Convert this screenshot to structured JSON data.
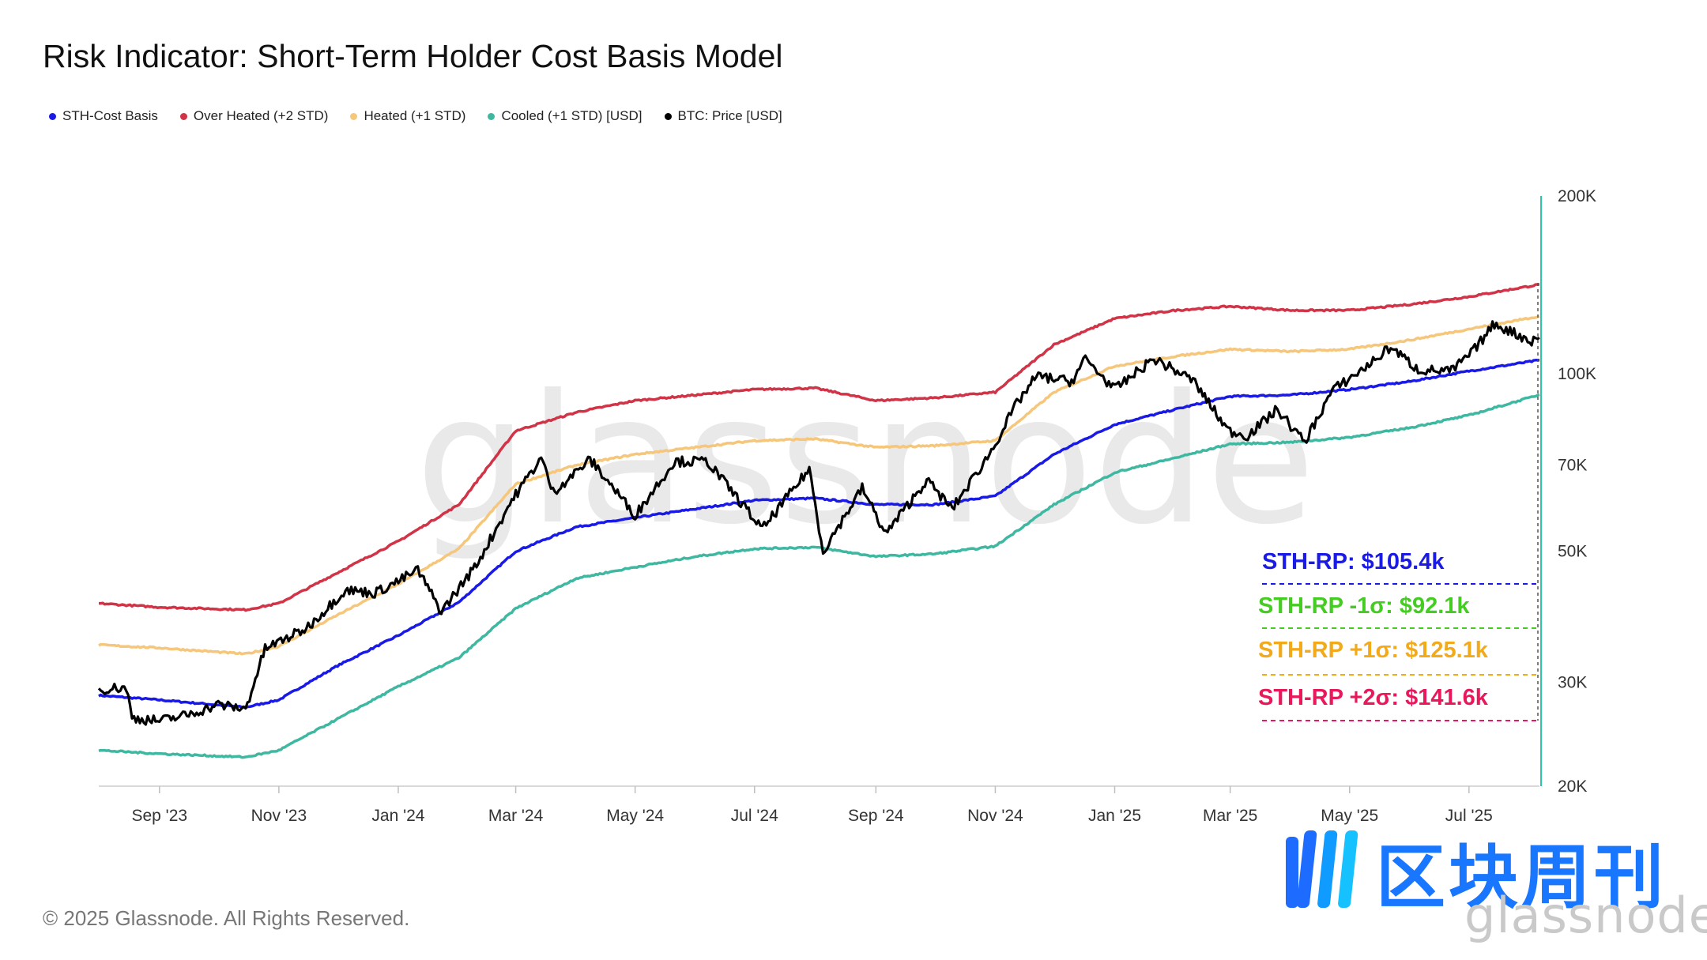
{
  "title": "Risk Indicator: Short-Term Holder Cost Basis Model",
  "legend": [
    {
      "label": "STH-Cost Basis",
      "color": "#1a1ae6"
    },
    {
      "label": "Over Heated (+2 STD)",
      "color": "#d13347"
    },
    {
      "label": "Heated (+1 STD)",
      "color": "#f6c67a"
    },
    {
      "label": "Cooled (+1 STD) [USD]",
      "color": "#3fb8a2"
    },
    {
      "label": "BTC: Price [USD]",
      "color": "#000000"
    }
  ],
  "copyright": "© 2025 Glassnode. All Rights Reserved.",
  "watermark": "glassnode",
  "logo": {
    "text": "区块周刊",
    "sub": "glassnode"
  },
  "chart_data": {
    "type": "line",
    "title": "Risk Indicator: Short-Term Holder Cost Basis Model",
    "y_scale": "log",
    "ylim": [
      20000,
      200000
    ],
    "y_ticks": [
      {
        "value": 200000,
        "label": "200K"
      },
      {
        "value": 100000,
        "label": "100K"
      },
      {
        "value": 70000,
        "label": "70K"
      },
      {
        "value": 50000,
        "label": "50K"
      },
      {
        "value": 30000,
        "label": "30K"
      },
      {
        "value": 20000,
        "label": "20K"
      }
    ],
    "x_range": [
      "2023-08-01",
      "2025-08-06"
    ],
    "x_ticks": [
      {
        "date": "2023-09-01",
        "label": "Sep '23"
      },
      {
        "date": "2023-11-01",
        "label": "Nov '23"
      },
      {
        "date": "2024-01-01",
        "label": "Jan '24"
      },
      {
        "date": "2024-03-01",
        "label": "Mar '24"
      },
      {
        "date": "2024-05-01",
        "label": "May '24"
      },
      {
        "date": "2024-07-01",
        "label": "Jul '24"
      },
      {
        "date": "2024-09-01",
        "label": "Sep '24"
      },
      {
        "date": "2024-11-01",
        "label": "Nov '24"
      },
      {
        "date": "2025-01-01",
        "label": "Jan '25"
      },
      {
        "date": "2025-03-01",
        "label": "Mar '25"
      },
      {
        "date": "2025-05-01",
        "label": "May '25"
      },
      {
        "date": "2025-07-01",
        "label": "Jul '25"
      }
    ],
    "series": [
      {
        "name": "STH-Cost Basis",
        "color": "#1a1ae6",
        "points": [
          [
            "2023-08-01",
            28500
          ],
          [
            "2023-09-01",
            28000
          ],
          [
            "2023-10-15",
            27200
          ],
          [
            "2023-11-01",
            28000
          ],
          [
            "2023-12-01",
            32000
          ],
          [
            "2024-01-01",
            36000
          ],
          [
            "2024-02-01",
            41000
          ],
          [
            "2024-03-01",
            50000
          ],
          [
            "2024-04-01",
            55000
          ],
          [
            "2024-05-01",
            57000
          ],
          [
            "2024-06-01",
            59000
          ],
          [
            "2024-07-01",
            61000
          ],
          [
            "2024-08-01",
            61500
          ],
          [
            "2024-09-01",
            60000
          ],
          [
            "2024-10-01",
            60000
          ],
          [
            "2024-11-01",
            62000
          ],
          [
            "2024-12-01",
            73000
          ],
          [
            "2025-01-01",
            82000
          ],
          [
            "2025-02-01",
            87000
          ],
          [
            "2025-03-01",
            91500
          ],
          [
            "2025-04-01",
            92000
          ],
          [
            "2025-05-01",
            94000
          ],
          [
            "2025-06-01",
            97000
          ],
          [
            "2025-07-01",
            101000
          ],
          [
            "2025-08-06",
            105400
          ]
        ]
      },
      {
        "name": "Over Heated (+2 STD)",
        "color": "#d13347",
        "points": [
          [
            "2023-08-01",
            40800
          ],
          [
            "2023-09-01",
            40200
          ],
          [
            "2023-10-15",
            39800
          ],
          [
            "2023-11-01",
            40800
          ],
          [
            "2023-12-01",
            46000
          ],
          [
            "2024-01-01",
            52000
          ],
          [
            "2024-02-01",
            60000
          ],
          [
            "2024-03-01",
            80000
          ],
          [
            "2024-04-01",
            86000
          ],
          [
            "2024-05-01",
            90000
          ],
          [
            "2024-06-01",
            92000
          ],
          [
            "2024-07-01",
            94000
          ],
          [
            "2024-08-01",
            94500
          ],
          [
            "2024-09-01",
            90000
          ],
          [
            "2024-10-01",
            91000
          ],
          [
            "2024-11-01",
            93000
          ],
          [
            "2024-12-01",
            112000
          ],
          [
            "2025-01-01",
            124000
          ],
          [
            "2025-02-01",
            128000
          ],
          [
            "2025-03-01",
            130000
          ],
          [
            "2025-04-01",
            128000
          ],
          [
            "2025-05-01",
            128000
          ],
          [
            "2025-06-01",
            131000
          ],
          [
            "2025-07-01",
            135000
          ],
          [
            "2025-08-06",
            141600
          ]
        ]
      },
      {
        "name": "Heated (+1 STD)",
        "color": "#f6c67a",
        "points": [
          [
            "2023-08-01",
            34700
          ],
          [
            "2023-09-01",
            34300
          ],
          [
            "2023-10-15",
            33500
          ],
          [
            "2023-11-01",
            34500
          ],
          [
            "2023-12-01",
            39000
          ],
          [
            "2024-01-01",
            44000
          ],
          [
            "2024-02-01",
            50500
          ],
          [
            "2024-03-01",
            65000
          ],
          [
            "2024-04-01",
            70000
          ],
          [
            "2024-05-01",
            73000
          ],
          [
            "2024-06-01",
            75000
          ],
          [
            "2024-07-01",
            77000
          ],
          [
            "2024-08-01",
            77500
          ],
          [
            "2024-09-01",
            75000
          ],
          [
            "2024-10-01",
            75500
          ],
          [
            "2024-11-01",
            77000
          ],
          [
            "2024-12-01",
            93000
          ],
          [
            "2025-01-01",
            103000
          ],
          [
            "2025-02-01",
            107000
          ],
          [
            "2025-03-01",
            110000
          ],
          [
            "2025-04-01",
            109000
          ],
          [
            "2025-05-01",
            110000
          ],
          [
            "2025-06-01",
            114000
          ],
          [
            "2025-07-01",
            119000
          ],
          [
            "2025-08-06",
            125100
          ]
        ]
      },
      {
        "name": "Cooled (+1 STD) [USD]",
        "color": "#3fb8a2",
        "points": [
          [
            "2023-08-01",
            23000
          ],
          [
            "2023-09-01",
            22700
          ],
          [
            "2023-10-15",
            22400
          ],
          [
            "2023-11-01",
            23000
          ],
          [
            "2023-12-01",
            26000
          ],
          [
            "2024-01-01",
            29500
          ],
          [
            "2024-02-01",
            33000
          ],
          [
            "2024-03-01",
            40000
          ],
          [
            "2024-04-01",
            45000
          ],
          [
            "2024-05-01",
            47000
          ],
          [
            "2024-06-01",
            49000
          ],
          [
            "2024-07-01",
            50500
          ],
          [
            "2024-08-01",
            50800
          ],
          [
            "2024-09-01",
            49000
          ],
          [
            "2024-10-01",
            49500
          ],
          [
            "2024-11-01",
            51000
          ],
          [
            "2024-12-01",
            60000
          ],
          [
            "2025-01-01",
            68000
          ],
          [
            "2025-02-01",
            72000
          ],
          [
            "2025-03-01",
            76000
          ],
          [
            "2025-04-01",
            76500
          ],
          [
            "2025-05-01",
            78000
          ],
          [
            "2025-06-01",
            81000
          ],
          [
            "2025-07-01",
            85000
          ],
          [
            "2025-08-06",
            92100
          ]
        ]
      },
      {
        "name": "BTC: Price [USD]",
        "color": "#000000",
        "points": [
          [
            "2023-08-01",
            29200
          ],
          [
            "2023-08-15",
            29400
          ],
          [
            "2023-08-18",
            26100
          ],
          [
            "2023-09-01",
            25800
          ],
          [
            "2023-09-15",
            26400
          ],
          [
            "2023-10-01",
            27500
          ],
          [
            "2023-10-15",
            27000
          ],
          [
            "2023-10-25",
            34200
          ],
          [
            "2023-11-15",
            37000
          ],
          [
            "2023-12-05",
            43000
          ],
          [
            "2023-12-20",
            42500
          ],
          [
            "2024-01-01",
            44500
          ],
          [
            "2024-01-11",
            46500
          ],
          [
            "2024-01-23",
            39500
          ],
          [
            "2024-02-10",
            47500
          ],
          [
            "2024-02-28",
            61000
          ],
          [
            "2024-03-14",
            72000
          ],
          [
            "2024-03-20",
            63000
          ],
          [
            "2024-04-08",
            71500
          ],
          [
            "2024-04-20",
            64000
          ],
          [
            "2024-05-01",
            57500
          ],
          [
            "2024-05-21",
            71000
          ],
          [
            "2024-06-07",
            71000
          ],
          [
            "2024-06-24",
            60500
          ],
          [
            "2024-07-05",
            54500
          ],
          [
            "2024-07-29",
            69000
          ],
          [
            "2024-08-05",
            50000
          ],
          [
            "2024-08-25",
            64000
          ],
          [
            "2024-09-06",
            53500
          ],
          [
            "2024-09-27",
            66000
          ],
          [
            "2024-10-10",
            59000
          ],
          [
            "2024-10-29",
            73000
          ],
          [
            "2024-11-12",
            89000
          ],
          [
            "2024-11-22",
            99000
          ],
          [
            "2024-12-10",
            97000
          ],
          [
            "2024-12-17",
            106000
          ],
          [
            "2025-01-01",
            94000
          ],
          [
            "2025-01-21",
            106000
          ],
          [
            "2025-02-10",
            97500
          ],
          [
            "2025-02-28",
            80000
          ],
          [
            "2025-03-10",
            78500
          ],
          [
            "2025-03-25",
            87000
          ],
          [
            "2025-04-08",
            76500
          ],
          [
            "2025-04-22",
            93500
          ],
          [
            "2025-05-10",
            103000
          ],
          [
            "2025-05-22",
            111000
          ],
          [
            "2025-06-05",
            101500
          ],
          [
            "2025-06-22",
            101000
          ],
          [
            "2025-07-03",
            109000
          ],
          [
            "2025-07-14",
            121500
          ],
          [
            "2025-08-02",
            113500
          ],
          [
            "2025-08-06",
            115000
          ]
        ]
      }
    ],
    "annotations": [
      {
        "text": "STH-RP: $105.4k",
        "color": "#1a1ae6"
      },
      {
        "text": "STH-RP -1σ: $92.1k",
        "color": "#44cc22"
      },
      {
        "text": "STH-RP +1σ: $125.1k",
        "color": "#f2aa1a"
      },
      {
        "text": "STH-RP +2σ: $141.6k",
        "color": "#e8185a"
      }
    ]
  }
}
